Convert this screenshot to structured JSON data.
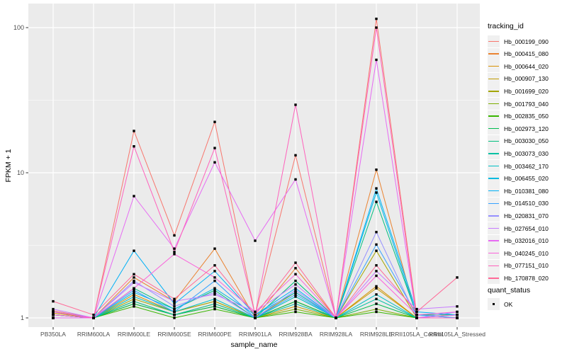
{
  "figure": {
    "background": "#ffffff"
  },
  "colors": {
    "panel_bg": "#ebebeb",
    "grid": "#ffffff",
    "axis_text": "#4d4d4d",
    "tick_mark": "#333333",
    "point": "#000000",
    "legend_key_bg": "#f0f0f0"
  },
  "chart_data": {
    "type": "line",
    "title": "",
    "xlabel": "sample_name",
    "ylabel": "FPKM + 1",
    "y_scale": "log10",
    "ylim": [
      0.87,
      146
    ],
    "y_ticks": [
      1,
      10,
      100
    ],
    "y_tick_labels": [
      "1",
      "10",
      "100"
    ],
    "y_minor_ticks": [
      3.1623,
      31.623
    ],
    "grid": true,
    "legend_position": "right",
    "series_legend_title": "tracking_id",
    "point_legend_title": "quant_status",
    "point_legend_items": [
      "OK"
    ],
    "point_shape": "black-square",
    "x_categories": [
      "PB350LA",
      "RRIM600LA",
      "RRIM600LE",
      "RRIM600SE",
      "RRIM600PE",
      "RRIM901LA",
      "RRIM928BA",
      "RRIM928LA",
      "RRIM928LE",
      "RRII105LA_Control",
      "RRII105LA_Stressed"
    ],
    "series": [
      {
        "name": "Hb_000199_090",
        "color": "#F8766D",
        "values": [
          1.12,
          1.0,
          19.4,
          3.7,
          22.4,
          1.05,
          13.2,
          1.0,
          115.0,
          1.05,
          1.05
        ]
      },
      {
        "name": "Hb_000415_080",
        "color": "#EA8331",
        "values": [
          1.05,
          1.0,
          1.9,
          1.3,
          3.0,
          1.0,
          2.2,
          1.0,
          10.5,
          1.0,
          1.0
        ]
      },
      {
        "name": "Hb_000644_020",
        "color": "#D89000",
        "values": [
          1.08,
          1.0,
          1.45,
          1.1,
          1.3,
          1.0,
          1.3,
          1.0,
          1.65,
          1.0,
          1.0
        ]
      },
      {
        "name": "Hb_000907_130",
        "color": "#C09B00",
        "values": [
          1.0,
          1.0,
          1.3,
          1.05,
          1.25,
          1.0,
          1.2,
          1.0,
          1.6,
          1.0,
          1.0
        ]
      },
      {
        "name": "Hb_001699_020",
        "color": "#A3A500",
        "values": [
          1.05,
          1.0,
          1.35,
          1.1,
          1.3,
          1.0,
          1.5,
          1.0,
          2.9,
          1.0,
          1.05
        ]
      },
      {
        "name": "Hb_001793_040",
        "color": "#7CAE00",
        "values": [
          1.0,
          1.0,
          1.25,
          1.05,
          1.2,
          1.0,
          1.15,
          1.0,
          1.15,
          1.0,
          1.0
        ]
      },
      {
        "name": "Hb_002835_050",
        "color": "#39B600",
        "values": [
          1.0,
          1.0,
          1.2,
          1.0,
          1.15,
          1.0,
          1.1,
          1.0,
          1.1,
          1.0,
          1.0
        ]
      },
      {
        "name": "Hb_002973_120",
        "color": "#00BB4E",
        "values": [
          1.05,
          1.0,
          1.25,
          1.05,
          1.2,
          1.0,
          1.3,
          1.0,
          1.25,
          1.0,
          1.0
        ]
      },
      {
        "name": "Hb_003030_050",
        "color": "#00BF7D",
        "values": [
          1.0,
          1.0,
          1.6,
          1.15,
          1.55,
          1.0,
          1.8,
          1.0,
          6.3,
          1.05,
          1.05
        ]
      },
      {
        "name": "Hb_003073_030",
        "color": "#00C1A3",
        "values": [
          1.0,
          1.0,
          1.3,
          1.05,
          1.25,
          1.0,
          1.25,
          1.0,
          1.35,
          1.0,
          1.0
        ]
      },
      {
        "name": "Hb_003462_170",
        "color": "#00BFC4",
        "values": [
          1.05,
          1.0,
          1.4,
          1.1,
          1.35,
          1.0,
          1.4,
          1.0,
          1.45,
          1.0,
          1.0
        ]
      },
      {
        "name": "Hb_006455_020",
        "color": "#00BAE0",
        "values": [
          1.0,
          1.0,
          1.5,
          1.15,
          1.6,
          1.05,
          1.5,
          1.0,
          7.3,
          1.05,
          1.0
        ]
      },
      {
        "name": "Hb_010381_080",
        "color": "#00B0F6",
        "values": [
          1.1,
          1.0,
          2.9,
          1.25,
          2.1,
          1.05,
          1.6,
          1.0,
          7.8,
          1.1,
          1.05
        ]
      },
      {
        "name": "Hb_014510_030",
        "color": "#35A2FF",
        "values": [
          1.05,
          1.0,
          1.55,
          1.1,
          1.8,
          1.0,
          1.45,
          1.0,
          3.2,
          1.05,
          1.0
        ]
      },
      {
        "name": "Hb_020831_070",
        "color": "#9590FF",
        "values": [
          1.0,
          1.0,
          1.8,
          1.2,
          1.5,
          1.0,
          1.55,
          1.0,
          3.9,
          1.0,
          1.1
        ]
      },
      {
        "name": "Hb_027654_010",
        "color": "#C77CFF",
        "values": [
          1.15,
          1.0,
          1.75,
          1.3,
          1.45,
          1.1,
          1.7,
          1.0,
          2.1,
          1.15,
          1.2
        ]
      },
      {
        "name": "Hb_032016_010",
        "color": "#E76BF3",
        "values": [
          1.0,
          1.0,
          6.9,
          3.0,
          11.8,
          3.4,
          9.0,
          1.0,
          60.0,
          1.0,
          1.05
        ]
      },
      {
        "name": "Hb_040245_010",
        "color": "#FA62DB",
        "values": [
          1.1,
          1.0,
          1.6,
          2.75,
          1.9,
          1.1,
          2.0,
          1.0,
          1.95,
          1.05,
          1.1
        ]
      },
      {
        "name": "Hb_077151_010",
        "color": "#FF62BC",
        "values": [
          1.05,
          1.0,
          15.2,
          2.85,
          14.8,
          1.05,
          29.4,
          1.0,
          100.0,
          1.0,
          1.0
        ]
      },
      {
        "name": "Hb_170878_020",
        "color": "#FF6A98",
        "values": [
          1.3,
          1.05,
          2.0,
          1.35,
          2.3,
          1.05,
          2.4,
          1.0,
          2.3,
          1.1,
          1.9
        ]
      }
    ]
  }
}
